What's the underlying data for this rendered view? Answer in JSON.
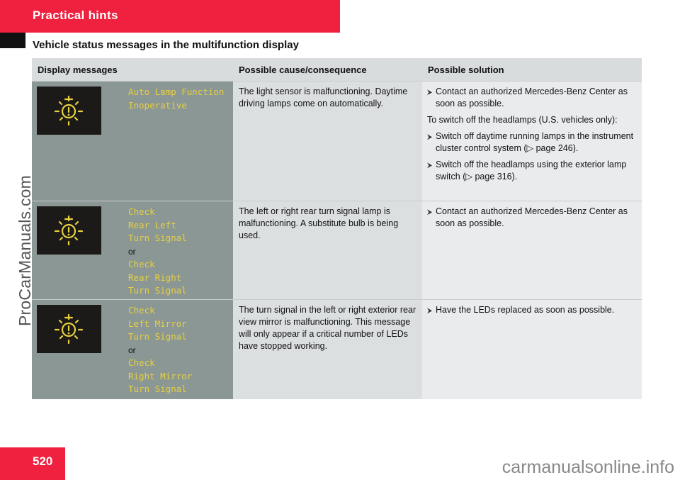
{
  "header": {
    "title": "Practical hints",
    "subheading": "Vehicle status messages in the multifunction display"
  },
  "table": {
    "columns": [
      "Display messages",
      "Possible cause/consequence",
      "Possible solution"
    ],
    "rows": [
      {
        "icon": "lamp-warning-icon",
        "message": [
          "Auto Lamp Function",
          "Inoperative"
        ],
        "cause": "The light sensor is malfunctioning. Daytime driving lamps come on automatically.",
        "solution": {
          "b1": "Contact an authorized Mercedes-Benz Center as soon as possible.",
          "p1": "To switch off the headlamps (U.S. vehicles only):",
          "b2_before": "Switch off daytime running lamps in the instrument cluster control system (",
          "b2_ref": "page 246",
          "b2_after": ").",
          "b3_before": "Switch off the headlamps using the exterior lamp switch (",
          "b3_ref": "page 316",
          "b3_after": ")."
        }
      },
      {
        "icon": "lamp-warning-icon",
        "message": [
          "Check",
          "Rear Left",
          "Turn Signal",
          "or",
          "Check",
          "Rear Right",
          "Turn Signal"
        ],
        "cause": "The left or right rear turn signal lamp is malfunctioning. A substitute bulb is being used.",
        "solution": {
          "b1": "Contact an authorized Mercedes-Benz Center as soon as possible."
        }
      },
      {
        "icon": "lamp-warning-icon",
        "message": [
          "Check",
          "Left Mirror",
          "Turn Signal",
          "or",
          "Check",
          "Right Mirror",
          "Turn Signal"
        ],
        "cause": "The turn signal in the left or right exterior rear view mirror is malfunctioning. This message will only appear if a critical number of LEDs have stopped working.",
        "solution": {
          "b1": "Have the LEDs replaced as soon as possible."
        }
      }
    ]
  },
  "page_number": "520",
  "watermarks": {
    "left": "ProCarManuals.com",
    "bottom": "carmanualsonline.info"
  },
  "colors": {
    "accent": "#f0203f",
    "display_text": "#e6d040"
  }
}
